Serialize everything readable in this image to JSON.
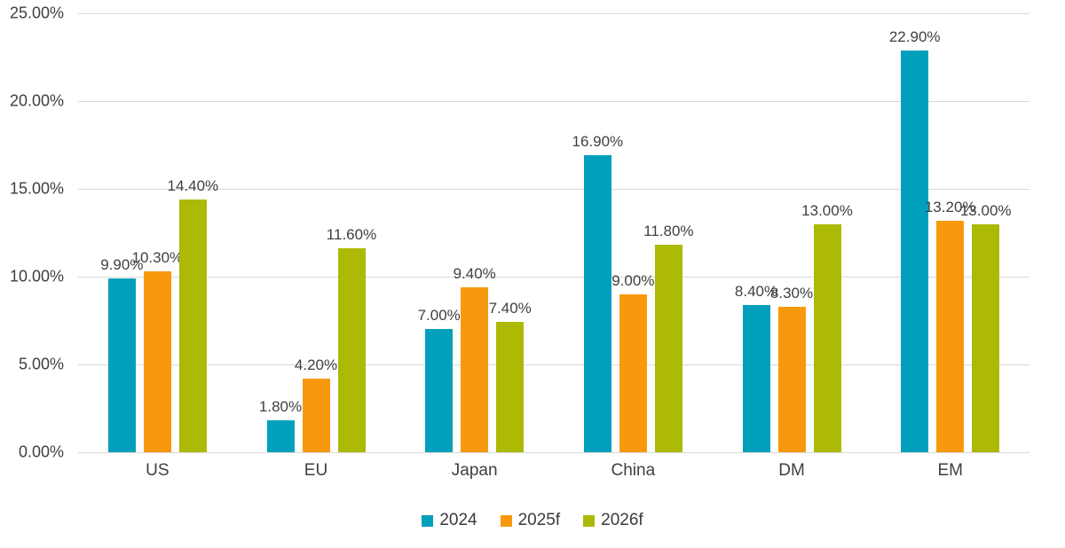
{
  "chart_data": {
    "type": "bar",
    "title": "",
    "categories": [
      "US",
      "EU",
      "Japan",
      "China",
      "DM",
      "EM"
    ],
    "series": [
      {
        "name": "2024",
        "color": "#00A0BC",
        "values": [
          9.9,
          1.8,
          7.0,
          16.9,
          8.4,
          22.9
        ],
        "labels": [
          "9.90%",
          "1.80%",
          "7.00%",
          "16.90%",
          "8.40%",
          "22.90%"
        ]
      },
      {
        "name": "2025f",
        "color": "#F8990D",
        "values": [
          10.3,
          4.2,
          9.4,
          9.0,
          8.3,
          13.2
        ],
        "labels": [
          "10.30%",
          "4.20%",
          "9.40%",
          "9.00%",
          "8.30%",
          "13.20%"
        ]
      },
      {
        "name": "2026f",
        "color": "#ACB905",
        "values": [
          14.4,
          11.6,
          7.4,
          11.8,
          13.0,
          13.0
        ],
        "labels": [
          "14.40%",
          "11.60%",
          "7.40%",
          "11.80%",
          "13.00%",
          "13.00%"
        ]
      }
    ],
    "ylim": [
      0,
      25
    ],
    "yticks": [
      0,
      5,
      10,
      15,
      20,
      25
    ],
    "ytick_labels": [
      "0.00%",
      "5.00%",
      "10.00%",
      "15.00%",
      "20.00%",
      "25.00%"
    ],
    "grid": true,
    "legend_position": "bottom"
  },
  "colors": {
    "background": "#ffffff",
    "grid": "#d9d9d9",
    "tick_text": "#3f3f3f",
    "label_text": "#404040"
  }
}
